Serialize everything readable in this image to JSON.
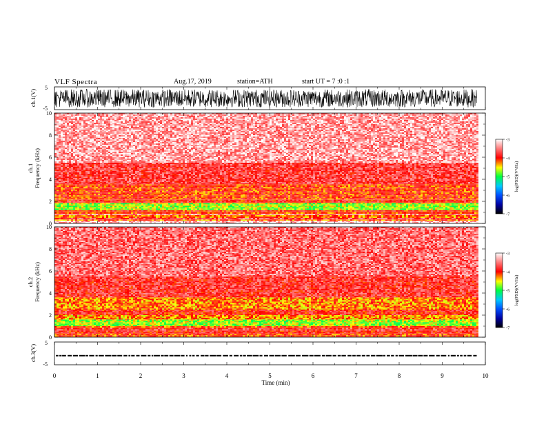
{
  "header": {
    "title": "VLF Spectra",
    "date": "Aug.17, 2019",
    "station": "station=ATH",
    "start_ut": "start UT =  7 :0 :1"
  },
  "chart_data": [
    {
      "type": "line",
      "panel": "ch1-waveform",
      "ylabel": "ch.1(V)",
      "ylim": [
        -5,
        5
      ],
      "yticks": [
        "5",
        "-5"
      ],
      "xlim": [
        0,
        10
      ],
      "data_end_min": 9.8,
      "amplitude_range": [
        -4,
        4
      ]
    },
    {
      "type": "heatmap",
      "panel": "ch1-spectrogram",
      "ylabel_channel": "ch.1",
      "ylabel": "Frequency (kHz)",
      "ylim": [
        0,
        10
      ],
      "yticks": [
        "0",
        "2",
        "4",
        "6",
        "8",
        "10"
      ],
      "xlim": [
        0,
        10
      ],
      "data_end_min": 9.8,
      "bands": [
        {
          "f": [
            0,
            0.25
          ],
          "level": -3.2
        },
        {
          "f": [
            0.25,
            0.35
          ],
          "level": -4.2
        },
        {
          "f": [
            0.35,
            0.5
          ],
          "level": -3.7
        },
        {
          "f": [
            0.5,
            0.75
          ],
          "level": -4.2
        },
        {
          "f": [
            0.75,
            0.85
          ],
          "level": -3.4
        },
        {
          "f": [
            0.85,
            1.0
          ],
          "level": -4.1
        },
        {
          "f": [
            1.0,
            1.2
          ],
          "level": -4.0
        },
        {
          "f": [
            1.2,
            1.85
          ],
          "level": -4.7
        },
        {
          "f": [
            1.85,
            2.15
          ],
          "level": -3.9
        },
        {
          "f": [
            2.15,
            3.55
          ],
          "level": -4.05
        },
        {
          "f": [
            3.55,
            5.5
          ],
          "level": -3.75
        },
        {
          "f": [
            5.5,
            10
          ],
          "level": -3.35
        }
      ],
      "colorbar": {
        "label": "log(PSD)(V²/Hz)",
        "range": [
          -7,
          -3
        ],
        "ticks": [
          "-3",
          "-4",
          "-5",
          "-6",
          "-7"
        ]
      }
    },
    {
      "type": "heatmap",
      "panel": "ch2-spectrogram",
      "ylabel_channel": "ch.2",
      "ylabel": "Frequency (kHz)",
      "ylim": [
        0,
        10
      ],
      "yticks": [
        "0",
        "2",
        "4",
        "6",
        "8",
        "10"
      ],
      "xlim": [
        0,
        10
      ],
      "data_end_min": 9.8,
      "bands": [
        {
          "f": [
            0,
            0.3
          ],
          "level": -4.1
        },
        {
          "f": [
            0.3,
            0.6
          ],
          "level": -3.9
        },
        {
          "f": [
            0.6,
            0.85
          ],
          "level": -3.8
        },
        {
          "f": [
            0.85,
            1.0
          ],
          "level": -4.1
        },
        {
          "f": [
            1.0,
            1.6
          ],
          "level": -4.7
        },
        {
          "f": [
            1.6,
            2.0
          ],
          "level": -4.3
        },
        {
          "f": [
            2.0,
            2.5
          ],
          "level": -3.9
        },
        {
          "f": [
            2.5,
            3.6
          ],
          "level": -4.25
        },
        {
          "f": [
            3.6,
            5.5
          ],
          "level": -3.8
        },
        {
          "f": [
            5.5,
            10
          ],
          "level": -3.55
        }
      ],
      "colorbar": {
        "label": "log(PSD)(V²/Hz)",
        "range": [
          -7,
          -3
        ],
        "ticks": [
          "-3",
          "-4",
          "-5",
          "-6",
          "-7"
        ]
      }
    },
    {
      "type": "line",
      "panel": "ch3-waveform",
      "ylabel": "ch.3(V)",
      "ylim": [
        -5,
        5
      ],
      "yticks": [
        "5",
        "-5"
      ],
      "xlim": [
        0,
        10
      ],
      "data_end_min": 9.8,
      "pulse_level": [
        -1.3,
        -0.7
      ]
    }
  ],
  "xaxis": {
    "label": "Time (min)",
    "ticks": [
      "0",
      "1",
      "2",
      "3",
      "4",
      "5",
      "6",
      "7",
      "8",
      "9",
      "10"
    ]
  },
  "colors": {
    "background": "#ffffff",
    "trace": "#000000"
  }
}
